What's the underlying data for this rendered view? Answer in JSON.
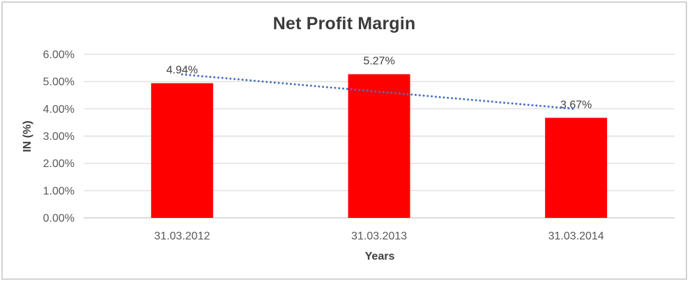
{
  "chart_data": {
    "type": "bar",
    "title": "Net Profit Margin",
    "xlabel": "Years",
    "ylabel": "IN (%)",
    "categories": [
      "31.03.2012",
      "31.03.2013",
      "31.03.2014"
    ],
    "values": [
      4.94,
      5.27,
      3.67
    ],
    "value_labels": [
      "4.94%",
      "5.27%",
      "3.67%"
    ],
    "ytick_labels": [
      "0.00%",
      "1.00%",
      "2.00%",
      "3.00%",
      "4.00%",
      "5.00%",
      "6.00%"
    ],
    "ylim": [
      0,
      6
    ],
    "ytick_step": 1,
    "grid": true,
    "legend": "none",
    "bar_color": "#ff0000",
    "trendline": {
      "type": "linear",
      "style": "dotted",
      "color": "#4472c4"
    },
    "colors": {
      "title_text": "#3b3b3b",
      "tick_text": "#595959",
      "axis_title_text": "#404040",
      "data_label_text": "#404040",
      "gridline": "#d9d9d9",
      "axis_line": "#c6c6c6",
      "chart_border": "#d2d2d2",
      "background": "#ffffff"
    }
  }
}
